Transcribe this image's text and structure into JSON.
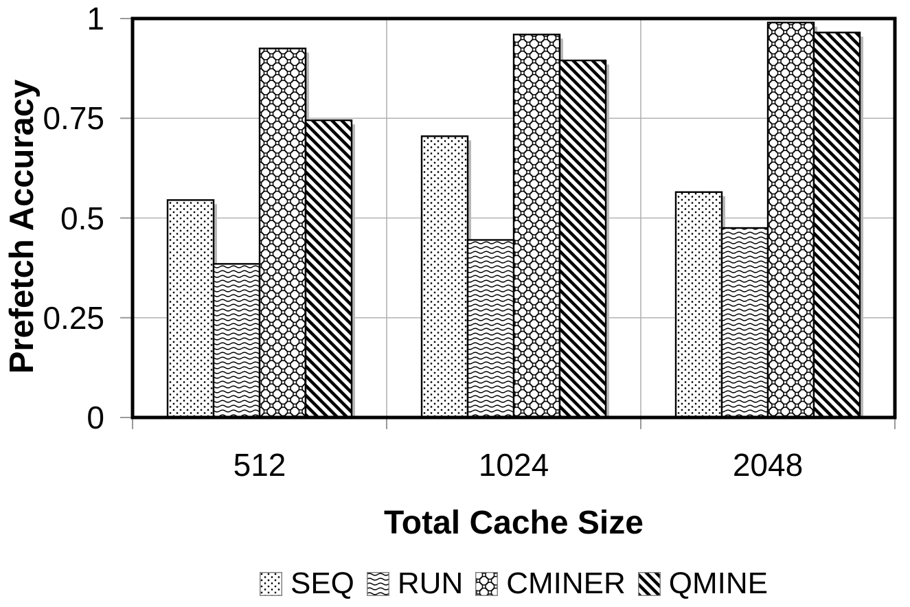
{
  "chart_data": {
    "type": "bar",
    "title": "",
    "xlabel": "Total Cache Size",
    "ylabel": "Prefetch Accuracy",
    "categories": [
      "512",
      "1024",
      "2048"
    ],
    "series": [
      {
        "name": "SEQ",
        "pattern": "dots",
        "values": [
          0.545,
          0.705,
          0.565
        ]
      },
      {
        "name": "RUN",
        "pattern": "waves",
        "values": [
          0.385,
          0.445,
          0.475
        ]
      },
      {
        "name": "CMINER",
        "pattern": "scales",
        "values": [
          0.925,
          0.96,
          0.99
        ]
      },
      {
        "name": "QMINE",
        "pattern": "diagonal-stripes",
        "values": [
          0.745,
          0.895,
          0.965
        ]
      }
    ],
    "ylim": [
      0,
      1
    ],
    "yticks": [
      {
        "value": 0,
        "label": "0"
      },
      {
        "value": 0.25,
        "label": "0.25"
      },
      {
        "value": 0.5,
        "label": "0.5"
      },
      {
        "value": 0.75,
        "label": "0.75"
      },
      {
        "value": 1,
        "label": "1"
      }
    ],
    "grid": {
      "horizontal_lines_at": [
        0.25,
        0.5,
        0.75
      ],
      "vertical_separators_between_categories": true
    },
    "legend_position": "bottom-center",
    "colors": {
      "foreground": "#000000",
      "background": "#ffffff",
      "gridline": "#b3b3b3",
      "tick": "#999999",
      "bar_shadow": "#b9b9b9"
    }
  }
}
